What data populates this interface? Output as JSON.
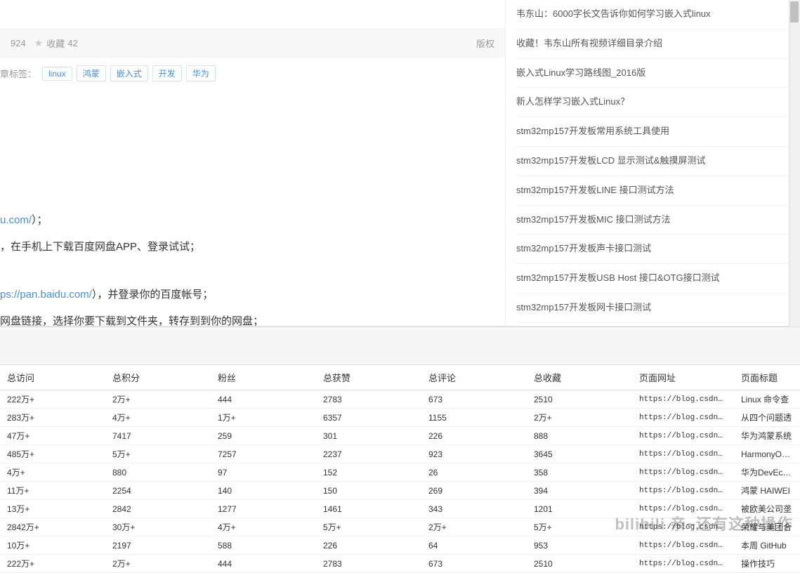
{
  "meta": {
    "count_prefix": "924",
    "collect_label": "收藏",
    "collect_count": "42",
    "version_label": "版权"
  },
  "tags": {
    "label": "章标签：",
    "items": [
      "linux",
      "鸿蒙",
      "嵌入式",
      "开发",
      "华为"
    ]
  },
  "article": {
    "line1_link": "u.com/",
    "line1_tail": "）；",
    "line2": "，在手机上下载百度网盘APP、登录试试；",
    "line3_link": "ps://pan.baidu.com/",
    "line3_tail": "），并登录你的百度帐号；",
    "line4": "网盘链接，选择你要下载到文件夹，转存到到你的网盘；"
  },
  "sidebar": {
    "items": [
      "韦东山：6000字长文告诉你如何学习嵌入式linux",
      "收藏！韦东山所有视频详细目录介绍",
      "嵌入式Linux学习路线图_2016版",
      "新人怎样学习嵌入式Linux？",
      "stm32mp157开发板常用系统工具使用",
      "stm32mp157开发板LCD 显示测试&触摸屏测试",
      "stm32mp157开发板LINE 接口测试方法",
      "stm32mp157开发板MIC 接口测试方法",
      "stm32mp157开发板声卡接口测试",
      "stm32mp157开发板USB Host 接口&OTG接口测试",
      "stm32mp157开发板网卡接口测试"
    ]
  },
  "table": {
    "columns": [
      "总访问",
      "总积分",
      "粉丝",
      "总获赞",
      "总评论",
      "总收藏",
      "页面网址",
      "页面标题"
    ],
    "rows": [
      [
        "222万+",
        "2万+",
        "444",
        "2783",
        "673",
        "2510",
        "https://blog.csdn.ne...",
        "Linux 命令查"
      ],
      [
        "283万+",
        "4万+",
        "1万+",
        "6357",
        "1155",
        "2万+",
        "https://blog.csdn.ne...",
        "从四个问题透"
      ],
      [
        "47万+",
        "7417",
        "259",
        "301",
        "226",
        "888",
        "https://blog.csdn.ne...",
        "华为鸿蒙系统"
      ],
      [
        "485万+",
        "5万+",
        "7257",
        "2237",
        "923",
        "3645",
        "https://blog.csdn.ne...",
        "HarmonyOS简介"
      ],
      [
        "4万+",
        "880",
        "97",
        "152",
        "26",
        "358",
        "https://blog.csdn.ne...",
        "华为DevEco S"
      ],
      [
        "11万+",
        "2254",
        "140",
        "150",
        "269",
        "394",
        "https://blog.csdn.ne...",
        "鸿蒙 HAIWEI"
      ],
      [
        "13万+",
        "2842",
        "1277",
        "1461",
        "343",
        "1201",
        "https://blog.csdn.ne...",
        "被欧美公司垄"
      ],
      [
        "2842万+",
        "30万+",
        "4万+",
        "5万+",
        "2万+",
        "5万+",
        "https://blog.csdn.ne...",
        "荣耀与美团合"
      ],
      [
        "10万+",
        "2197",
        "588",
        "226",
        "64",
        "953",
        "https://blog.csdn.ne...",
        "本周 GitHub"
      ],
      [
        "222万+",
        "2万+",
        "444",
        "2783",
        "673",
        "2510",
        "https://blog.csdn.ne...",
        "操作技巧"
      ]
    ]
  },
  "watermark": "bilibili 亲~还有这种操作"
}
